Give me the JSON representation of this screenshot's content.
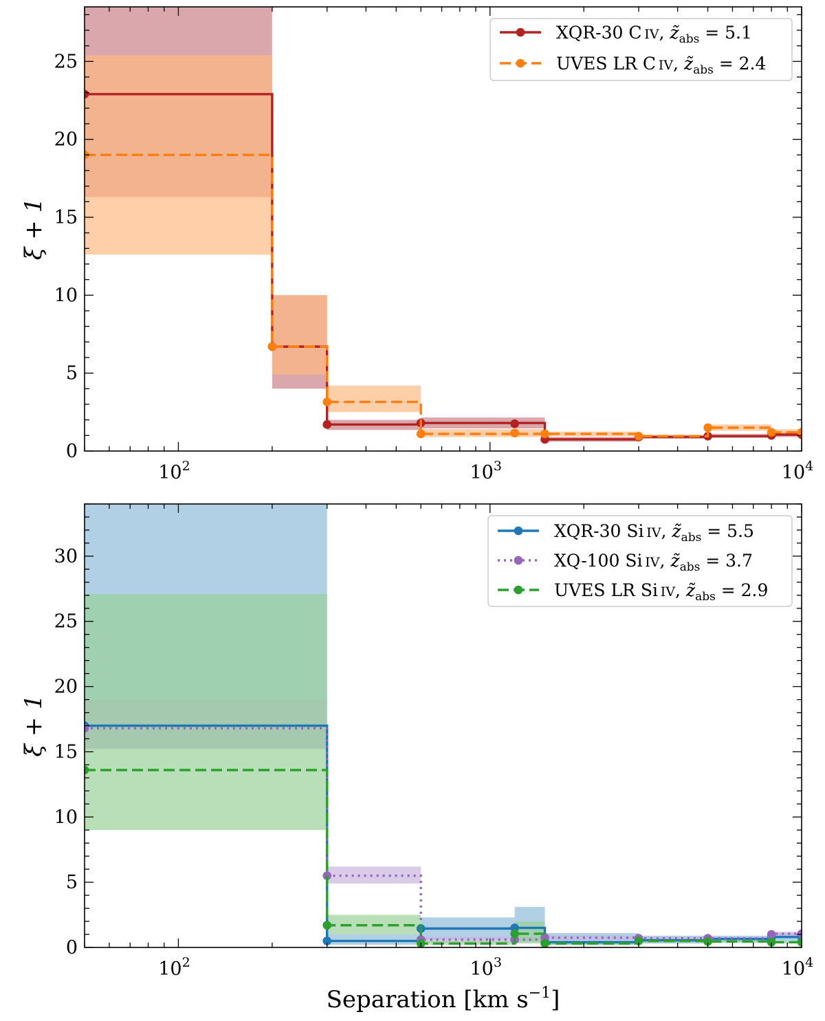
{
  "chart_data": [
    {
      "type": "line",
      "xscale": "log",
      "xlim": [
        50,
        10000
      ],
      "ylim": [
        0,
        28.5
      ],
      "xlabel": "Separation [km s",
      "xlabel_sup": "−1",
      "xlabel_end": "]",
      "ylabel": "ξ + 1",
      "xticks": [
        {
          "value": 100,
          "base": "10",
          "exp": "2"
        },
        {
          "value": 1000,
          "base": "10",
          "exp": "3"
        },
        {
          "value": 10000,
          "base": "10",
          "exp": "4"
        }
      ],
      "yticks": [
        0,
        5,
        10,
        15,
        20,
        25
      ],
      "bin_edges": [
        50,
        200,
        300,
        600,
        1500,
        3000,
        5000,
        8000,
        10000
      ],
      "legend_position": "top-right",
      "series": [
        {
          "name": "XQR-30 C IV",
          "legend_main": "XQR-30 C",
          "legend_ion": "IV",
          "legend_z": "5.1",
          "color": "#b22222",
          "band_color": "#c87f84",
          "dash": "solid",
          "points": [
            [
              50,
              22.9
            ],
            [
              200,
              6.7
            ],
            [
              300,
              1.7
            ],
            [
              600,
              1.8
            ],
            [
              1200,
              1.75
            ],
            [
              1500,
              0.75
            ],
            [
              3000,
              0.9
            ],
            [
              5000,
              0.95
            ],
            [
              8000,
              1.0
            ],
            [
              10000,
              1.05
            ]
          ],
          "bins": [
            {
              "x0": 50,
              "x1": 200,
              "y": 22.9,
              "lo": 16.3,
              "hi": 28.5
            },
            {
              "x0": 200,
              "x1": 300,
              "y": 6.7,
              "lo": 4.0,
              "hi": 10.0
            },
            {
              "x0": 300,
              "x1": 600,
              "y": 1.7,
              "lo": 1.35,
              "hi": 2.0
            },
            {
              "x0": 600,
              "x1": 1500,
              "y": 1.8,
              "lo": 1.45,
              "hi": 2.15
            },
            {
              "x0": 1500,
              "x1": 3000,
              "y": 0.75,
              "lo": 0.6,
              "hi": 0.9
            },
            {
              "x0": 3000,
              "x1": 5000,
              "y": 0.9,
              "lo": 0.8,
              "hi": 1.0
            },
            {
              "x0": 5000,
              "x1": 8000,
              "y": 0.95,
              "lo": 0.85,
              "hi": 1.1
            },
            {
              "x0": 8000,
              "x1": 10000,
              "y": 1.05,
              "lo": 0.9,
              "hi": 1.2
            }
          ]
        },
        {
          "name": "UVES LR C IV",
          "legend_main": "UVES LR C",
          "legend_ion": "IV",
          "legend_z": "2.4",
          "color": "#ff7f0e",
          "band_color": "#ffb880",
          "dash": "dashed",
          "points": [
            [
              50,
              19.0
            ],
            [
              200,
              6.7
            ],
            [
              300,
              3.15
            ],
            [
              600,
              1.1
            ],
            [
              1200,
              1.15
            ],
            [
              1500,
              1.1
            ],
            [
              3000,
              0.95
            ],
            [
              5000,
              1.5
            ],
            [
              8000,
              1.2
            ],
            [
              10000,
              1.2
            ]
          ],
          "bins": [
            {
              "x0": 50,
              "x1": 200,
              "y": 19.0,
              "lo": 12.6,
              "hi": 25.4
            },
            {
              "x0": 200,
              "x1": 300,
              "y": 6.7,
              "lo": 4.9,
              "hi": 10.0
            },
            {
              "x0": 300,
              "x1": 600,
              "y": 3.15,
              "lo": 2.5,
              "hi": 4.2
            },
            {
              "x0": 600,
              "x1": 1500,
              "y": 1.1,
              "lo": 0.9,
              "hi": 1.4
            },
            {
              "x0": 1500,
              "x1": 3000,
              "y": 1.1,
              "lo": 0.95,
              "hi": 1.25
            },
            {
              "x0": 3000,
              "x1": 5000,
              "y": 0.95,
              "lo": 0.85,
              "hi": 1.05
            },
            {
              "x0": 5000,
              "x1": 8000,
              "y": 1.5,
              "lo": 1.3,
              "hi": 1.7
            },
            {
              "x0": 8000,
              "x1": 10000,
              "y": 1.2,
              "lo": 1.0,
              "hi": 1.4
            }
          ]
        }
      ]
    },
    {
      "type": "line",
      "xscale": "log",
      "xlim": [
        50,
        10000
      ],
      "ylim": [
        0,
        34
      ],
      "xlabel": "Separation [km s",
      "xlabel_sup": "−1",
      "xlabel_end": "]",
      "ylabel": "ξ + 1",
      "xticks": [
        {
          "value": 100,
          "base": "10",
          "exp": "2"
        },
        {
          "value": 1000,
          "base": "10",
          "exp": "3"
        },
        {
          "value": 10000,
          "base": "10",
          "exp": "4"
        }
      ],
      "yticks": [
        0,
        5,
        10,
        15,
        20,
        25,
        30
      ],
      "bin_edges": [
        50,
        300,
        600,
        1200,
        1500,
        3000,
        5000,
        8000,
        10000
      ],
      "legend_position": "top-right",
      "series": [
        {
          "name": "XQR-30 Si IV",
          "legend_main": "XQR-30 Si",
          "legend_ion": "IV",
          "legend_z": "5.5",
          "color": "#1f77b4",
          "band_color": "#8cb9da",
          "dash": "solid",
          "points": [
            [
              50,
              17.0
            ],
            [
              300,
              0.5
            ],
            [
              600,
              1.45
            ],
            [
              1200,
              1.5
            ],
            [
              1500,
              0.4
            ],
            [
              3000,
              0.55
            ],
            [
              5000,
              0.65
            ],
            [
              8000,
              0.75
            ],
            [
              10000,
              0.8
            ]
          ],
          "bins": [
            {
              "x0": 50,
              "x1": 300,
              "y": 17.0,
              "lo": 15.3,
              "hi": 34.0
            },
            {
              "x0": 300,
              "x1": 600,
              "y": 0.5,
              "lo": 0.2,
              "hi": 1.0
            },
            {
              "x0": 600,
              "x1": 1200,
              "y": 1.45,
              "lo": 0.6,
              "hi": 2.3
            },
            {
              "x0": 1200,
              "x1": 1500,
              "y": 1.5,
              "lo": 0.5,
              "hi": 3.1
            },
            {
              "x0": 1500,
              "x1": 3000,
              "y": 0.4,
              "lo": 0.2,
              "hi": 1.1
            },
            {
              "x0": 3000,
              "x1": 5000,
              "y": 0.55,
              "lo": 0.3,
              "hi": 0.9
            },
            {
              "x0": 5000,
              "x1": 8000,
              "y": 0.65,
              "lo": 0.4,
              "hi": 0.9
            },
            {
              "x0": 8000,
              "x1": 10000,
              "y": 0.8,
              "lo": 0.5,
              "hi": 1.1
            }
          ]
        },
        {
          "name": "XQ-100 Si IV",
          "legend_main": "XQ-100 Si",
          "legend_ion": "IV",
          "legend_z": "3.7",
          "color": "#9467bd",
          "band_color": "#c9b3de",
          "dash": "dotted",
          "points": [
            [
              50,
              16.8
            ],
            [
              300,
              5.5
            ],
            [
              600,
              0.6
            ],
            [
              1200,
              0.6
            ],
            [
              1500,
              0.75
            ],
            [
              3000,
              0.7
            ],
            [
              5000,
              0.7
            ],
            [
              8000,
              1.0
            ],
            [
              10000,
              1.05
            ]
          ],
          "bins": [
            {
              "x0": 50,
              "x1": 300,
              "y": 16.8,
              "lo": 15.2,
              "hi": 19.0
            },
            {
              "x0": 300,
              "x1": 600,
              "y": 5.5,
              "lo": 4.9,
              "hi": 6.2
            },
            {
              "x0": 600,
              "x1": 1200,
              "y": 0.6,
              "lo": 0.4,
              "hi": 0.8
            },
            {
              "x0": 1200,
              "x1": 1500,
              "y": 0.6,
              "lo": 0.4,
              "hi": 0.8
            },
            {
              "x0": 1500,
              "x1": 3000,
              "y": 0.75,
              "lo": 0.6,
              "hi": 0.9
            },
            {
              "x0": 3000,
              "x1": 5000,
              "y": 0.7,
              "lo": 0.6,
              "hi": 0.8
            },
            {
              "x0": 5000,
              "x1": 8000,
              "y": 0.7,
              "lo": 0.6,
              "hi": 0.8
            },
            {
              "x0": 8000,
              "x1": 10000,
              "y": 1.05,
              "lo": 0.9,
              "hi": 1.2
            }
          ]
        },
        {
          "name": "UVES LR Si IV",
          "legend_main": "UVES LR Si",
          "legend_ion": "IV",
          "legend_z": "2.9",
          "color": "#2ca02c",
          "band_color": "#96d096",
          "dash": "dashed",
          "points": [
            [
              50,
              13.6
            ],
            [
              300,
              1.7
            ],
            [
              600,
              0.3
            ],
            [
              1200,
              1.05
            ],
            [
              1500,
              0.3
            ],
            [
              3000,
              0.5
            ],
            [
              5000,
              0.45
            ],
            [
              8000,
              0.4
            ],
            [
              10000,
              0.4
            ]
          ],
          "bins": [
            {
              "x0": 50,
              "x1": 300,
              "y": 13.6,
              "lo": 9.0,
              "hi": 27.1
            },
            {
              "x0": 300,
              "x1": 600,
              "y": 1.7,
              "lo": 1.0,
              "hi": 2.5
            },
            {
              "x0": 600,
              "x1": 1200,
              "y": 0.3,
              "lo": 0.2,
              "hi": 0.5
            },
            {
              "x0": 1200,
              "x1": 1500,
              "y": 1.05,
              "lo": 0.3,
              "hi": 2.0
            },
            {
              "x0": 1500,
              "x1": 3000,
              "y": 0.3,
              "lo": 0.2,
              "hi": 0.5
            },
            {
              "x0": 3000,
              "x1": 5000,
              "y": 0.5,
              "lo": 0.35,
              "hi": 0.65
            },
            {
              "x0": 5000,
              "x1": 8000,
              "y": 0.45,
              "lo": 0.35,
              "hi": 0.55
            },
            {
              "x0": 8000,
              "x1": 10000,
              "y": 0.4,
              "lo": 0.3,
              "hi": 0.5
            }
          ]
        }
      ]
    }
  ]
}
